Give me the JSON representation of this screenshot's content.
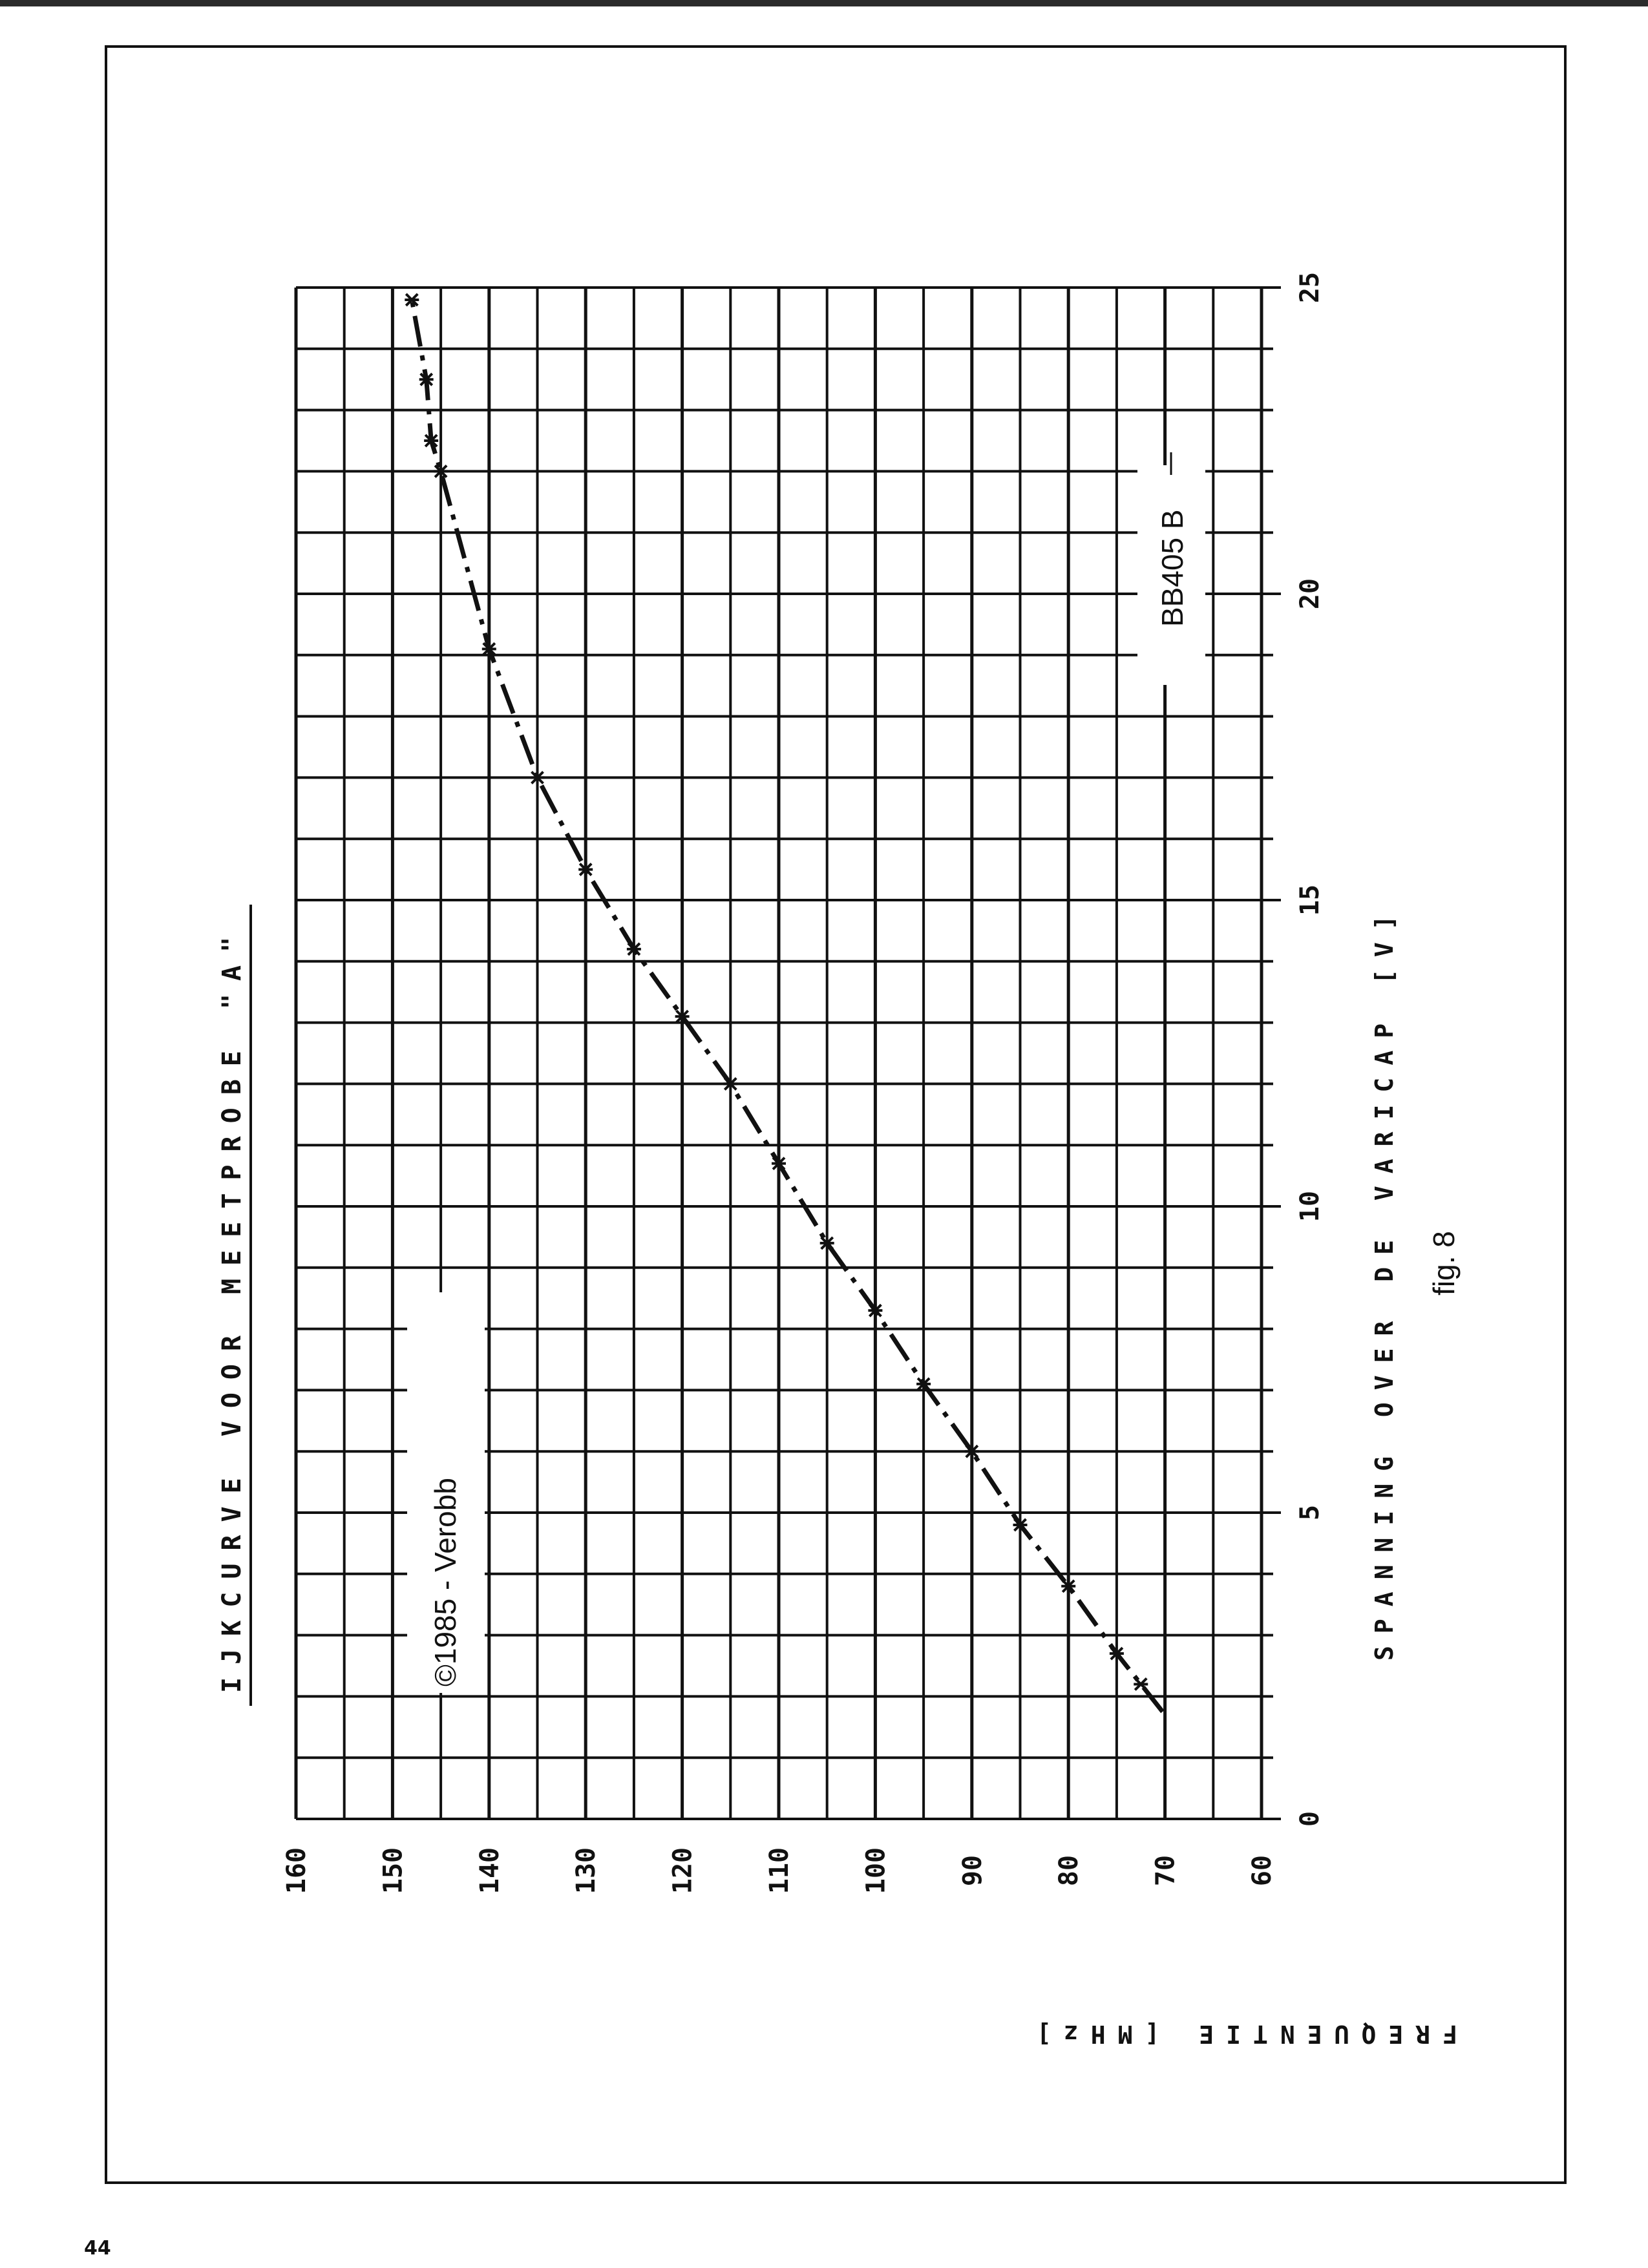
{
  "page": {
    "number": "44",
    "caption": "fig. 8"
  },
  "chart_data": {
    "type": "line",
    "title": "IJKCURVE VOOR MEETPROBE \"A\"",
    "xlabel": "SPANNING OVER DE VARICAP [V]",
    "ylabel": "FREQUENTIE [MHz]",
    "xlim": [
      0,
      25
    ],
    "ylim": [
      60,
      160
    ],
    "x_ticks": [
      "0",
      "5",
      "10",
      "15",
      "20",
      "25"
    ],
    "y_ticks": [
      "160",
      "150",
      "140",
      "130",
      "120",
      "110",
      "100",
      "90",
      "80",
      "70",
      "60"
    ],
    "grid": true,
    "orientation": "rotated 90° counter-clockwise on page",
    "series": [
      {
        "name": "BB405 B",
        "line_style": "dash-dot",
        "x": [
          2.2,
          2.7,
          3.8,
          4.8,
          6.0,
          7.1,
          8.3,
          9.4,
          10.7,
          12.0,
          13.1,
          14.2,
          15.5,
          17.0,
          19.1,
          22.0,
          22.5,
          23.5,
          24.8
        ],
        "y": [
          72.5,
          75,
          80,
          85,
          90,
          95,
          100,
          105,
          110,
          115,
          120,
          125,
          130,
          135,
          140,
          145,
          146,
          146.5,
          148
        ]
      }
    ],
    "annotations": [
      "BB405 B",
      "©1985 - Verobb"
    ]
  },
  "colors": {
    "ink": "#111111",
    "paper": "#ffffff"
  }
}
